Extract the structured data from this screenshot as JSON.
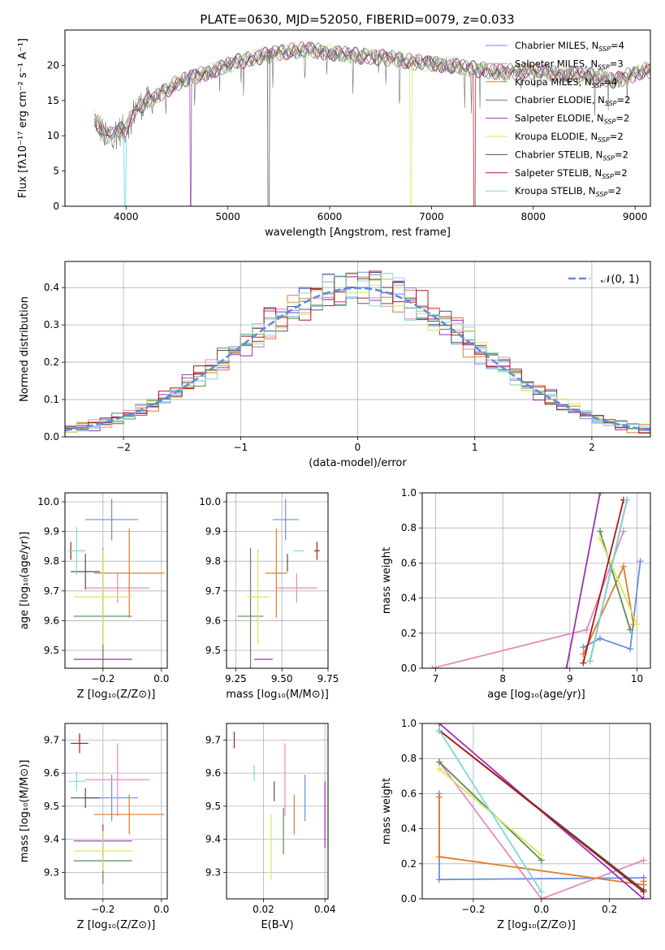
{
  "title": "PLATE=0630, MJD=52050, FIBERID=0079, z=0.033",
  "colors": {
    "Chabrier MILES": "#6a8fdc",
    "Salpeter MILES": "#e48bbf",
    "Kroupa MILES": "#e07b2a",
    "Chabrier ELODIE": "#5a8a5a",
    "Salpeter ELODIE": "#9b2fb5",
    "Kroupa ELODIE": "#d6e85a",
    "Chabrier STELIB": "#505050",
    "Salpeter STELIB": "#b01818",
    "Kroupa STELIB": "#7fd8da",
    "normal": "#5b8fd9",
    "grid": "#b0b0b0"
  },
  "chart_data": [
    {
      "type": "line",
      "id": "spectrum",
      "xlabel": "wavelength [Angstrom, rest frame]",
      "ylabel": "Flux [fλ10⁻¹⁷ erg cm⁻² s⁻¹ A⁻¹]",
      "xlim": [
        3400,
        9150
      ],
      "ylim": [
        0,
        25
      ],
      "xticks": [
        4000,
        5000,
        6000,
        7000,
        8000,
        9000
      ],
      "yticks": [
        0,
        5,
        10,
        15,
        20
      ],
      "grid": false,
      "legend_position": "top-right",
      "legend": [
        "Chabrier MILES, N_SSP=4",
        "Salpeter MILES, N_SSP=3",
        "Kroupa MILES, N_SSP=4",
        "Chabrier ELODIE, N_SSP=2",
        "Salpeter ELODIE, N_SSP=2",
        "Kroupa ELODIE, N_SSP=2",
        "Chabrier STELIB, N_SSP=2",
        "Salpeter STELIB, N_SSP=2",
        "Kroupa STELIB, N_SSP=2"
      ],
      "continuum_x": [
        3690,
        3800,
        3900,
        4000,
        4100,
        4300,
        4500,
        4700,
        4900,
        5100,
        5300,
        5600,
        5800,
        6000,
        6300,
        6600,
        6900,
        7200,
        7400,
        7700,
        8000,
        8300,
        8600,
        8800,
        9100
      ],
      "continuum_y": [
        12.5,
        9.8,
        10.5,
        11.0,
        14.0,
        15.5,
        17.5,
        18.5,
        19.5,
        20.5,
        21.2,
        22.0,
        22.2,
        21.8,
        21.3,
        21.0,
        20.3,
        20.0,
        19.5,
        19.0,
        19.2,
        18.7,
        18.5,
        17.8,
        19.3
      ],
      "model_drops": [
        {
          "series": "Salpeter ELODIE",
          "x": 4635
        },
        {
          "series": "Chabrier STELIB",
          "x": 5400
        },
        {
          "series": "Kroupa ELODIE",
          "x": 6800
        },
        {
          "series": "Salpeter STELIB",
          "x": 7420
        },
        {
          "series": "Kroupa STELIB",
          "x": 3990
        }
      ]
    },
    {
      "type": "histogram",
      "id": "residuals",
      "xlabel": "(data-model)/error",
      "ylabel": "Normed distribution",
      "xlim": [
        -2.5,
        2.5
      ],
      "ylim": [
        0,
        0.47
      ],
      "xticks": [
        -2,
        -1,
        0,
        1,
        2
      ],
      "yticks": [
        0.0,
        0.1,
        0.2,
        0.3,
        0.4
      ],
      "grid": true,
      "legend_position": "top-right",
      "legend": [
        "𝒩(0, 1)"
      ],
      "bin_width": 0.1
    },
    {
      "type": "errorbar",
      "id": "age-vs-Z",
      "xlabel": "Z [log₁₀(Z/Z⊙)]",
      "ylabel": "age  [log₁₀(age/yr)]",
      "xlim": [
        -0.33,
        0.02
      ],
      "ylim": [
        9.44,
        10.03
      ],
      "xticks": [
        -0.2,
        0.0
      ],
      "yticks": [
        9.5,
        9.6,
        9.7,
        9.8,
        9.9,
        10.0
      ],
      "grid": true,
      "points": [
        {
          "series": "Chabrier MILES",
          "x": -0.17,
          "xerr": 0.09,
          "y": 9.94,
          "yerr": 0.07
        },
        {
          "series": "Salpeter MILES",
          "x": -0.15,
          "xerr": 0.11,
          "y": 9.71,
          "yerr": 0.05
        },
        {
          "series": "Kroupa MILES",
          "x": -0.11,
          "xerr": 0.12,
          "y": 9.76,
          "yerr": 0.15
        },
        {
          "series": "Chabrier ELODIE",
          "x": -0.2,
          "xerr": 0.1,
          "y": 9.615,
          "yerr": 0.23
        },
        {
          "series": "Salpeter ELODIE",
          "x": -0.2,
          "xerr": 0.1,
          "y": 9.47,
          "yerr": 0.0
        },
        {
          "series": "Kroupa ELODIE",
          "x": -0.2,
          "xerr": 0.1,
          "y": 9.68,
          "yerr": 0.16
        },
        {
          "series": "Chabrier STELIB",
          "x": -0.26,
          "xerr": 0.05,
          "y": 9.765,
          "yerr": 0.06
        },
        {
          "series": "Salpeter STELIB",
          "x": -0.31,
          "xerr": 0.0,
          "y": 9.835,
          "yerr": 0.03
        },
        {
          "series": "Kroupa STELIB",
          "x": -0.29,
          "xerr": 0.03,
          "y": 9.835,
          "yerr": 0.08
        }
      ]
    },
    {
      "type": "errorbar",
      "id": "age-vs-mass",
      "xlabel": "mass [log₁₀(M/M⊙)]",
      "ylabel": "",
      "xlim": [
        9.2,
        9.75
      ],
      "ylim": [
        9.44,
        10.03
      ],
      "xticks": [
        9.25,
        9.5,
        9.75
      ],
      "yticks": [
        9.5,
        9.6,
        9.7,
        9.8,
        9.9,
        10.0
      ],
      "grid": true,
      "points": [
        {
          "series": "Chabrier MILES",
          "x": 9.52,
          "xerr": 0.07,
          "y": 9.94,
          "yerr": 0.07
        },
        {
          "series": "Salpeter MILES",
          "x": 9.58,
          "xerr": 0.11,
          "y": 9.71,
          "yerr": 0.05
        },
        {
          "series": "Kroupa MILES",
          "x": 9.47,
          "xerr": 0.06,
          "y": 9.76,
          "yerr": 0.15
        },
        {
          "series": "Chabrier ELODIE",
          "x": 9.33,
          "xerr": 0.07,
          "y": 9.615,
          "yerr": 0.23
        },
        {
          "series": "Salpeter ELODIE",
          "x": 9.4,
          "xerr": 0.05,
          "y": 9.47,
          "yerr": 0.0
        },
        {
          "series": "Kroupa ELODIE",
          "x": 9.37,
          "xerr": 0.06,
          "y": 9.68,
          "yerr": 0.16
        },
        {
          "series": "Chabrier STELIB",
          "x": 9.53,
          "xerr": 0.0,
          "y": 9.795,
          "yerr": 0.03
        },
        {
          "series": "Salpeter STELIB",
          "x": 9.69,
          "xerr": 0.015,
          "y": 9.835,
          "yerr": 0.03
        },
        {
          "series": "Kroupa STELIB",
          "x": 9.59,
          "xerr": 0.03,
          "y": 9.835,
          "yerr": 0.0
        }
      ]
    },
    {
      "type": "line",
      "id": "weight-vs-age",
      "xlabel": "age  [log₁₀(age/yr)]",
      "ylabel": "mass weight",
      "xlim": [
        6.8,
        10.2
      ],
      "ylim": [
        0,
        1
      ],
      "xticks": [
        7,
        8,
        9,
        10
      ],
      "yticks": [
        0.0,
        0.2,
        0.4,
        0.6,
        0.8,
        1.0
      ],
      "grid": true,
      "series": [
        {
          "name": "Chabrier MILES",
          "x": [
            9.2,
            9.45,
            9.9,
            10.05
          ],
          "y": [
            0.12,
            0.17,
            0.11,
            0.61
          ]
        },
        {
          "name": "Salpeter MILES",
          "x": [
            6.95,
            9.25,
            9.8
          ],
          "y": [
            0.0,
            0.22,
            0.78
          ]
        },
        {
          "name": "Kroupa MILES",
          "x": [
            9.2,
            9.8,
            9.95
          ],
          "y": [
            0.08,
            0.58,
            0.25
          ]
        },
        {
          "name": "Chabrier ELODIE",
          "x": [
            9.45,
            9.9
          ],
          "y": [
            0.78,
            0.22
          ]
        },
        {
          "name": "Salpeter ELODIE",
          "x": [
            8.95,
            9.45
          ],
          "y": [
            0.0,
            1.0
          ]
        },
        {
          "name": "Kroupa ELODIE",
          "x": [
            9.45,
            10.0
          ],
          "y": [
            0.74,
            0.25
          ]
        },
        {
          "name": "Chabrier STELIB",
          "x": [
            9.3,
            9.85
          ],
          "y": [
            0.04,
            0.96
          ]
        },
        {
          "name": "Salpeter STELIB",
          "x": [
            9.2,
            9.8
          ],
          "y": [
            0.03,
            0.96
          ]
        },
        {
          "name": "Kroupa STELIB",
          "x": [
            9.3,
            9.85
          ],
          "y": [
            0.04,
            0.96
          ]
        }
      ]
    },
    {
      "type": "errorbar",
      "id": "mass-vs-Z",
      "xlabel": "Z [log₁₀(Z/Z⊙)]",
      "ylabel": "mass [log₁₀(M/M⊙)]",
      "xlim": [
        -0.33,
        0.02
      ],
      "ylim": [
        9.22,
        9.75
      ],
      "xticks": [
        -0.2,
        0.0
      ],
      "yticks": [
        9.3,
        9.4,
        9.5,
        9.6,
        9.7
      ],
      "grid": true,
      "points": [
        {
          "series": "Chabrier MILES",
          "x": -0.17,
          "xerr": 0.09,
          "y": 9.525,
          "yerr": 0.07
        },
        {
          "series": "Salpeter MILES",
          "x": -0.15,
          "xerr": 0.11,
          "y": 9.58,
          "yerr": 0.11
        },
        {
          "series": "Kroupa MILES",
          "x": -0.11,
          "xerr": 0.12,
          "y": 9.475,
          "yerr": 0.06
        },
        {
          "series": "Chabrier ELODIE",
          "x": -0.2,
          "xerr": 0.1,
          "y": 9.335,
          "yerr": 0.07
        },
        {
          "series": "Salpeter ELODIE",
          "x": -0.2,
          "xerr": 0.1,
          "y": 9.395,
          "yerr": 0.05
        },
        {
          "series": "Kroupa ELODIE",
          "x": -0.2,
          "xerr": 0.1,
          "y": 9.365,
          "yerr": 0.06
        },
        {
          "series": "Chabrier STELIB",
          "x": -0.26,
          "xerr": 0.05,
          "y": 9.525,
          "yerr": 0.03
        },
        {
          "series": "Salpeter STELIB",
          "x": -0.28,
          "xerr": 0.03,
          "y": 9.69,
          "yerr": 0.03
        },
        {
          "series": "Kroupa STELIB",
          "x": -0.29,
          "xerr": 0.03,
          "y": 9.575,
          "yerr": 0.03
        }
      ]
    },
    {
      "type": "errorbar",
      "id": "mass-vs-EBV",
      "xlabel": "E(B-V)",
      "ylabel": "",
      "xlim": [
        0.008,
        0.041
      ],
      "ylim": [
        9.22,
        9.75
      ],
      "xticks": [
        0.02,
        0.04
      ],
      "yticks": [
        9.3,
        9.4,
        9.5,
        9.6,
        9.7
      ],
      "grid": true,
      "points": [
        {
          "series": "Chabrier MILES",
          "x": 0.0335,
          "xerr": 0.0,
          "y": 9.525,
          "yerr": 0.07
        },
        {
          "series": "Salpeter MILES",
          "x": 0.027,
          "xerr": 0.0,
          "y": 9.58,
          "yerr": 0.11
        },
        {
          "series": "Kroupa MILES",
          "x": 0.03,
          "xerr": 0.0,
          "y": 9.475,
          "yerr": 0.06
        },
        {
          "series": "Chabrier ELODIE",
          "x": 0.0265,
          "xerr": 0.0,
          "y": 9.425,
          "yerr": 0.07
        },
        {
          "series": "Salpeter ELODIE",
          "x": 0.04,
          "xerr": 0.0,
          "y": 9.475,
          "yerr": 0.1
        },
        {
          "series": "Kroupa ELODIE",
          "x": 0.0225,
          "xerr": 0.0,
          "y": 9.375,
          "yerr": 0.1
        },
        {
          "series": "Chabrier STELIB",
          "x": 0.0235,
          "xerr": 0.0,
          "y": 9.545,
          "yerr": 0.03
        },
        {
          "series": "Salpeter STELIB",
          "x": 0.0105,
          "xerr": 0.0,
          "y": 9.7,
          "yerr": 0.025
        },
        {
          "series": "Kroupa STELIB",
          "x": 0.017,
          "xerr": 0.0,
          "y": 9.6,
          "yerr": 0.025
        }
      ]
    },
    {
      "type": "line",
      "id": "weight-vs-Z",
      "xlabel": "Z [log₁₀(Z/Z⊙)]",
      "ylabel": "mass weight",
      "xlim": [
        -0.35,
        0.32
      ],
      "ylim": [
        0,
        1
      ],
      "xticks": [
        -0.2,
        0.0,
        0.2
      ],
      "yticks": [
        0.0,
        0.2,
        0.4,
        0.6,
        0.8,
        1.0
      ],
      "grid": true,
      "series": [
        {
          "name": "Chabrier MILES",
          "x": [
            -0.3,
            -0.3,
            0.3,
            0.3
          ],
          "y": [
            0.6,
            0.11,
            0.12,
            0.12
          ]
        },
        {
          "name": "Salpeter MILES",
          "x": [
            -0.3,
            0.0,
            0.3
          ],
          "y": [
            0.78,
            0.0,
            0.22
          ]
        },
        {
          "name": "Kroupa MILES",
          "x": [
            -0.3,
            -0.3,
            0.3,
            0.3
          ],
          "y": [
            0.58,
            0.24,
            0.08,
            0.1
          ]
        },
        {
          "name": "Chabrier ELODIE",
          "x": [
            -0.3,
            0.0
          ],
          "y": [
            0.78,
            0.22
          ]
        },
        {
          "name": "Salpeter ELODIE",
          "x": [
            -0.3,
            0.3
          ],
          "y": [
            1.0,
            0.0
          ]
        },
        {
          "name": "Kroupa ELODIE",
          "x": [
            -0.3,
            0.0
          ],
          "y": [
            0.74,
            0.25
          ]
        },
        {
          "name": "Chabrier STELIB",
          "x": [
            -0.3,
            0.3
          ],
          "y": [
            0.96,
            0.05
          ]
        },
        {
          "name": "Salpeter STELIB",
          "x": [
            -0.3,
            0.3
          ],
          "y": [
            0.96,
            0.04
          ]
        },
        {
          "name": "Kroupa STELIB",
          "x": [
            -0.3,
            0.0
          ],
          "y": [
            0.96,
            0.04
          ]
        }
      ]
    }
  ]
}
